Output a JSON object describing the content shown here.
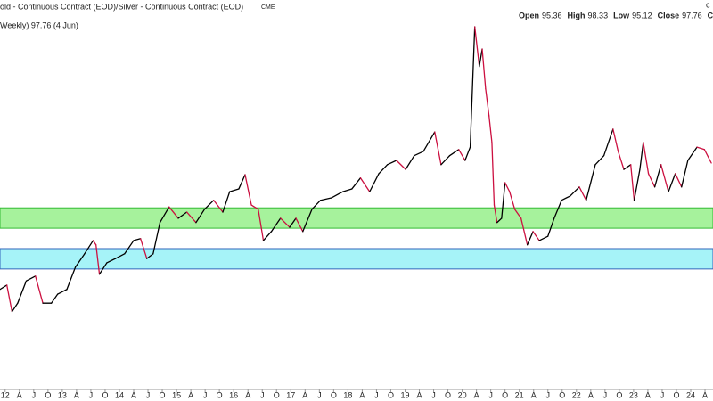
{
  "header": {
    "title": "old - Continuous Contract (EOD)/Silver - Continuous Contract (EOD)",
    "exchange": "CME",
    "ohlc": [
      {
        "label": "Open",
        "value": 95.36
      },
      {
        "label": "High",
        "value": 98.33
      },
      {
        "label": "Low",
        "value": 95.12
      },
      {
        "label": "Close",
        "value": 97.76
      },
      {
        "label": "Ch"
      }
    ],
    "corner": "c"
  },
  "chart_data": {
    "type": "line",
    "legend_text": "Weekly) 97.76 (4 Jun)",
    "up_color": "#000000",
    "down_color": "#cc1040",
    "xlim": [
      2011.91,
      2024.39
    ],
    "ylim": [
      50,
      128
    ],
    "grid": false,
    "bands": [
      {
        "from": 84.0,
        "to": 88.3,
        "color": "#a6f29c",
        "border": "#33bb33"
      },
      {
        "from": 75.4,
        "to": 79.7,
        "color": "#a6f3f8",
        "border": "#3366bb"
      }
    ],
    "xticks": [
      {
        "value": 2012,
        "label": "12"
      },
      {
        "value": 2012.25,
        "label": "A"
      },
      {
        "value": 2012.5,
        "label": "J"
      },
      {
        "value": 2012.75,
        "label": "O"
      },
      {
        "value": 2013,
        "label": "13"
      },
      {
        "value": 2013.25,
        "label": "A"
      },
      {
        "value": 2013.5,
        "label": "J"
      },
      {
        "value": 2013.75,
        "label": "O"
      },
      {
        "value": 2014,
        "label": "14"
      },
      {
        "value": 2014.25,
        "label": "A"
      },
      {
        "value": 2014.5,
        "label": "J"
      },
      {
        "value": 2014.75,
        "label": "O"
      },
      {
        "value": 2015,
        "label": "15"
      },
      {
        "value": 2015.25,
        "label": "A"
      },
      {
        "value": 2015.5,
        "label": "J"
      },
      {
        "value": 2015.75,
        "label": "O"
      },
      {
        "value": 2016,
        "label": "16"
      },
      {
        "value": 2016.25,
        "label": "A"
      },
      {
        "value": 2016.5,
        "label": "J"
      },
      {
        "value": 2016.75,
        "label": "O"
      },
      {
        "value": 2017,
        "label": "17"
      },
      {
        "value": 2017.25,
        "label": "A"
      },
      {
        "value": 2017.5,
        "label": "J"
      },
      {
        "value": 2017.75,
        "label": "O"
      },
      {
        "value": 2018,
        "label": "18"
      },
      {
        "value": 2018.25,
        "label": "A"
      },
      {
        "value": 2018.5,
        "label": "J"
      },
      {
        "value": 2018.75,
        "label": "O"
      },
      {
        "value": 2019,
        "label": "19"
      },
      {
        "value": 2019.25,
        "label": "A"
      },
      {
        "value": 2019.5,
        "label": "J"
      },
      {
        "value": 2019.75,
        "label": "O"
      },
      {
        "value": 2020,
        "label": "20"
      },
      {
        "value": 2020.25,
        "label": "A"
      },
      {
        "value": 2020.5,
        "label": "J"
      },
      {
        "value": 2020.75,
        "label": "O"
      },
      {
        "value": 2021,
        "label": "21"
      },
      {
        "value": 2021.25,
        "label": "A"
      },
      {
        "value": 2021.5,
        "label": "J"
      },
      {
        "value": 2021.75,
        "label": "O"
      },
      {
        "value": 2022,
        "label": "22"
      },
      {
        "value": 2022.25,
        "label": "A"
      },
      {
        "value": 2022.5,
        "label": "J"
      },
      {
        "value": 2022.75,
        "label": "O"
      },
      {
        "value": 2023,
        "label": "23"
      },
      {
        "value": 2023.25,
        "label": "A"
      },
      {
        "value": 2023.5,
        "label": "J"
      },
      {
        "value": 2023.75,
        "label": "O"
      },
      {
        "value": 2024,
        "label": "24"
      },
      {
        "value": 2024.25,
        "label": "A"
      }
    ],
    "x": [
      2011.91,
      2012.03,
      2012.12,
      2012.22,
      2012.37,
      2012.53,
      2012.66,
      2012.81,
      2012.92,
      2013.08,
      2013.23,
      2013.39,
      2013.54,
      2013.59,
      2013.65,
      2013.78,
      2013.93,
      2014.09,
      2014.25,
      2014.37,
      2014.48,
      2014.59,
      2014.71,
      2014.87,
      2015.03,
      2015.18,
      2015.34,
      2015.49,
      2015.65,
      2015.81,
      2015.93,
      2016.09,
      2016.2,
      2016.31,
      2016.43,
      2016.52,
      2016.66,
      2016.82,
      2016.98,
      2017.09,
      2017.21,
      2017.37,
      2017.52,
      2017.71,
      2017.91,
      2018.07,
      2018.22,
      2018.38,
      2018.54,
      2018.69,
      2018.85,
      2019.01,
      2019.16,
      2019.32,
      2019.52,
      2019.63,
      2019.78,
      2019.94,
      2020.05,
      2020.14,
      2020.22,
      2020.3,
      2020.35,
      2020.41,
      2020.47,
      2020.52,
      2020.56,
      2020.61,
      2020.69,
      2020.75,
      2020.83,
      2020.92,
      2021.03,
      2021.14,
      2021.24,
      2021.35,
      2021.5,
      2021.61,
      2021.74,
      2021.89,
      2022.05,
      2022.17,
      2022.33,
      2022.48,
      2022.64,
      2022.73,
      2022.83,
      2022.95,
      2023.01,
      2023.11,
      2023.17,
      2023.26,
      2023.37,
      2023.48,
      2023.61,
      2023.73,
      2023.84,
      2023.95,
      2024.11,
      2024.24,
      2024.36
    ],
    "values": [
      71.1,
      72.0,
      66.4,
      68.2,
      72.9,
      73.9,
      68.2,
      68.2,
      70.1,
      71.1,
      75.8,
      78.6,
      81.4,
      80.5,
      74.3,
      76.7,
      77.6,
      78.6,
      81.4,
      81.8,
      77.6,
      78.6,
      85.2,
      88.5,
      86.1,
      87.4,
      85.2,
      88.0,
      89.9,
      87.4,
      91.7,
      92.3,
      95.3,
      88.9,
      88.0,
      81.4,
      83.3,
      86.1,
      84.2,
      86.1,
      83.3,
      88.0,
      89.9,
      90.4,
      91.7,
      92.3,
      94.6,
      91.7,
      95.5,
      97.4,
      98.3,
      96.4,
      99.3,
      100.2,
      104.3,
      97.4,
      99.3,
      100.6,
      98.3,
      101.1,
      126.5,
      118.1,
      121.8,
      113.4,
      107.7,
      102.1,
      88.9,
      85.2,
      86.1,
      93.6,
      91.7,
      88.0,
      86.1,
      80.5,
      83.3,
      81.4,
      82.3,
      86.1,
      89.9,
      90.8,
      92.7,
      89.9,
      97.4,
      99.3,
      104.9,
      100.2,
      96.4,
      97.4,
      89.9,
      96.4,
      102.1,
      95.5,
      92.7,
      97.4,
      91.7,
      95.5,
      92.7,
      98.3,
      101.1,
      100.6,
      97.76
    ]
  }
}
